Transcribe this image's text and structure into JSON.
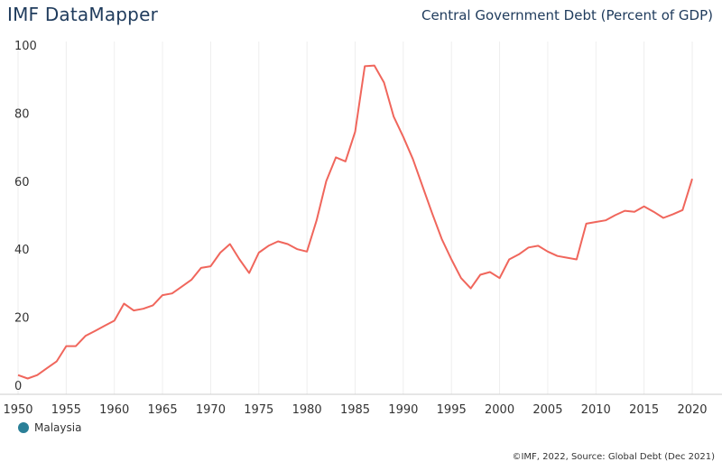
{
  "header": {
    "brand": "IMF DataMapper",
    "title": "Central Government Debt (Percent of GDP)"
  },
  "legend": {
    "label": "Malaysia",
    "color": "#2a7f97"
  },
  "footer": {
    "source": "©IMF, 2022, Source: Global Debt (Dec 2021)"
  },
  "chart_data": {
    "type": "line",
    "title": "Central Government Debt (Percent of GDP)",
    "xlabel": "",
    "ylabel": "",
    "xlim": [
      1950,
      2021
    ],
    "ylim": [
      0,
      100
    ],
    "x_ticks": [
      1950,
      1955,
      1960,
      1965,
      1970,
      1975,
      1980,
      1985,
      1990,
      1995,
      2000,
      2005,
      2010,
      2015,
      2020
    ],
    "y_ticks": [
      0,
      20,
      40,
      60,
      80,
      100
    ],
    "grid": "vertical",
    "legend_position": "bottom-left",
    "line_color": "#f0665c",
    "series": [
      {
        "name": "Malaysia",
        "x": [
          1950,
          1951,
          1952,
          1953,
          1954,
          1955,
          1956,
          1957,
          1958,
          1959,
          1960,
          1961,
          1962,
          1963,
          1964,
          1965,
          1966,
          1967,
          1968,
          1969,
          1970,
          1971,
          1972,
          1973,
          1974,
          1975,
          1976,
          1977,
          1978,
          1979,
          1980,
          1981,
          1982,
          1983,
          1984,
          1985,
          1986,
          1987,
          1988,
          1989,
          1990,
          1991,
          1992,
          1993,
          1994,
          1995,
          1996,
          1997,
          1998,
          1999,
          2000,
          2001,
          2002,
          2003,
          2004,
          2005,
          2006,
          2007,
          2008,
          2009,
          2010,
          2011,
          2012,
          2013,
          2014,
          2015,
          2016,
          2017,
          2018,
          2019,
          2020
        ],
        "values": [
          3.0,
          2.0,
          3.0,
          5.0,
          7.0,
          11.5,
          11.5,
          14.5,
          16.0,
          17.5,
          19.0,
          24.0,
          22.0,
          22.5,
          23.5,
          26.5,
          27.0,
          29.0,
          31.0,
          34.5,
          35.0,
          39.0,
          41.5,
          37.0,
          33.0,
          39.0,
          41.0,
          42.3,
          41.5,
          40.0,
          39.3,
          48.5,
          60.0,
          67.0,
          65.8,
          74.5,
          93.8,
          94.0,
          89.0,
          79.0,
          73.0,
          66.5,
          58.5,
          50.5,
          43.0,
          37.0,
          31.5,
          28.5,
          32.5,
          33.3,
          31.5,
          37.0,
          38.5,
          40.5,
          41.0,
          39.3,
          38.0,
          37.5,
          37.0,
          47.5,
          48.0,
          48.5,
          50.0,
          51.3,
          51.0,
          52.6,
          51.0,
          49.2,
          50.3,
          51.5,
          60.7
        ]
      }
    ]
  }
}
